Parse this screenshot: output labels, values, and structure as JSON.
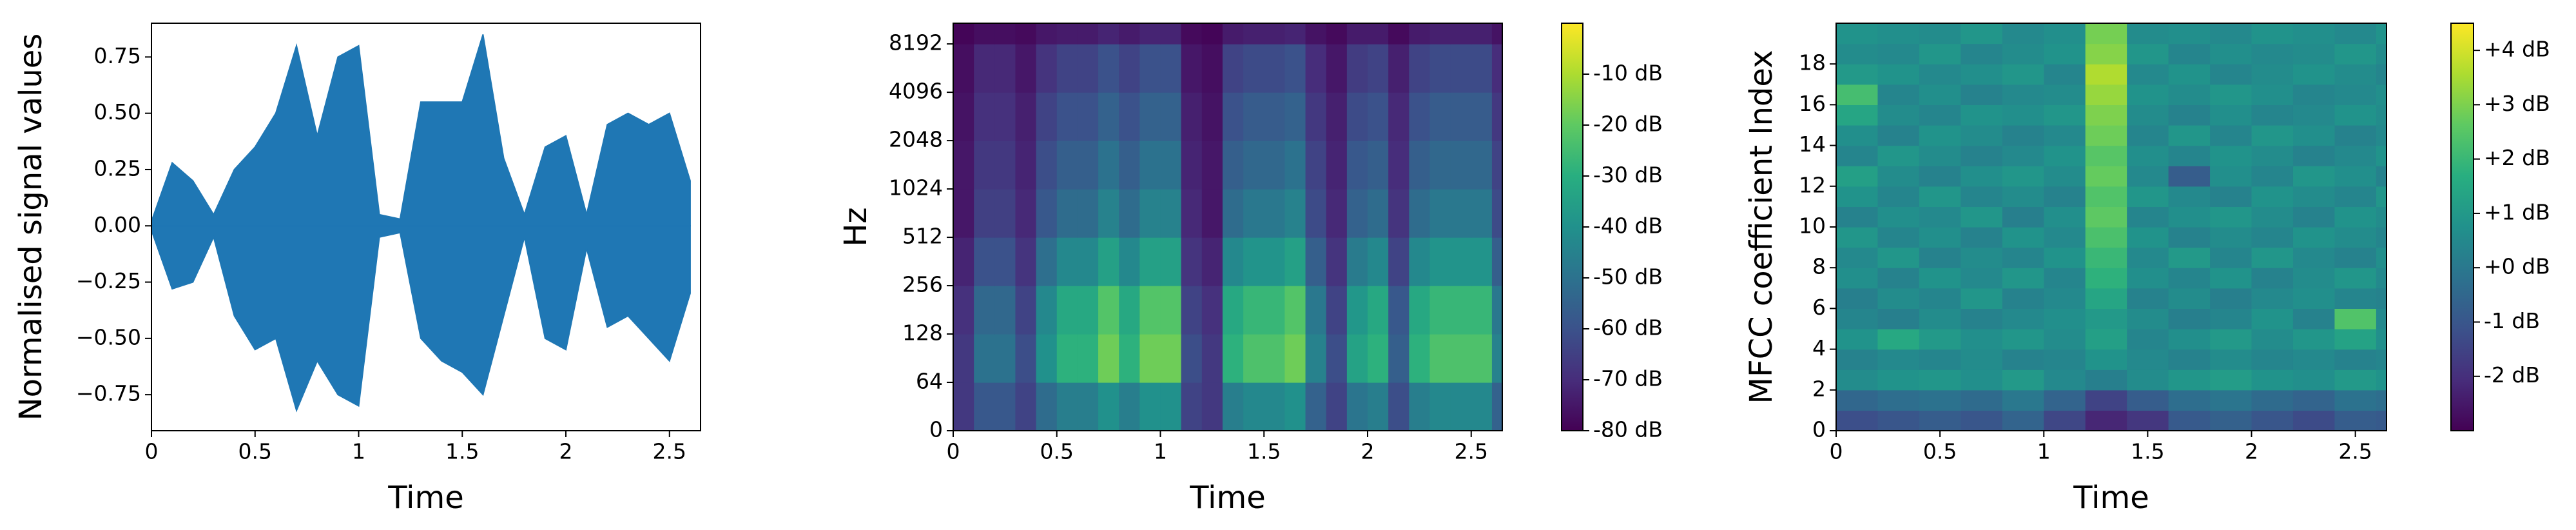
{
  "chart_data": [
    {
      "type": "area",
      "xlabel": "Time",
      "ylabel": "Normalised signal values",
      "color": "#1f77b4",
      "x": [
        0,
        0.1,
        0.2,
        0.3,
        0.4,
        0.5,
        0.6,
        0.7,
        0.8,
        0.9,
        1,
        1.1,
        1.2,
        1.3,
        1.4,
        1.5,
        1.6,
        1.7,
        1.8,
        1.9,
        2,
        2.1,
        2.2,
        2.3,
        2.4,
        2.5,
        2.6
      ],
      "series": [
        {
          "values": [
            0.02,
            0.28,
            0.2,
            0.05,
            0.25,
            0.35,
            0.5,
            0.8,
            0.4,
            0.75,
            0.8,
            0.05,
            0.03,
            0.55,
            0.55,
            0.55,
            0.85,
            0.3,
            0.05,
            0.35,
            0.4,
            0.05,
            0.45,
            0.5,
            0.45,
            0.5,
            0.2
          ]
        },
        {
          "values": [
            -0.02,
            -0.28,
            -0.25,
            -0.05,
            -0.4,
            -0.55,
            -0.5,
            -0.82,
            -0.6,
            -0.75,
            -0.8,
            -0.05,
            -0.03,
            -0.5,
            -0.6,
            -0.65,
            -0.75,
            -0.4,
            -0.05,
            -0.5,
            -0.55,
            -0.1,
            -0.45,
            -0.4,
            -0.5,
            -0.6,
            -0.3
          ]
        }
      ],
      "xlim": [
        0,
        2.65
      ],
      "xticks": [
        0,
        0.5,
        1,
        1.5,
        2,
        2.5
      ],
      "ylim": [
        -0.91,
        0.9
      ],
      "yticks": [
        {
          "value": -0.75,
          "label": "−0.75"
        },
        {
          "value": -0.5,
          "label": "−0.50"
        },
        {
          "value": -0.25,
          "label": "−0.25"
        },
        {
          "value": 0,
          "label": "0.00"
        },
        0.25,
        {
          "value": 0.5,
          "label": "0.50"
        },
        0.75
      ]
    },
    {
      "type": "heatmap",
      "xlabel": "Time",
      "ylabel": "Hz",
      "colormap": "viridis",
      "yscale": "symlog",
      "linthresh": 64,
      "base": 2,
      "xbins": [
        0,
        0.1,
        0.2,
        0.3,
        0.4,
        0.5,
        0.6,
        0.7,
        0.8,
        0.9,
        1,
        1.1,
        1.2,
        1.3,
        1.4,
        1.5,
        1.6,
        1.7,
        1.8,
        1.9,
        2,
        2.1,
        2.2,
        2.3,
        2.4,
        2.5,
        2.6,
        2.65
      ],
      "ybins": [
        0,
        64,
        128,
        256,
        512,
        1024,
        2048,
        4096,
        8192,
        11025
      ],
      "z": [
        [
          -67,
          -58,
          -58,
          -64,
          -52,
          -46,
          -46,
          -40,
          -46,
          -40,
          -40,
          -64,
          -67,
          -46,
          -43,
          -43,
          -40,
          -55,
          -64,
          -49,
          -46,
          -61,
          -46,
          -43,
          -43,
          -43,
          -55
        ],
        [
          -67,
          -50,
          -50,
          -61,
          -40,
          -29,
          -29,
          -18,
          -29,
          -18,
          -18,
          -61,
          -67,
          -29,
          -23,
          -23,
          -18,
          -45,
          -61,
          -34,
          -29,
          -56,
          -29,
          -23,
          -23,
          -23,
          -45
        ],
        [
          -69,
          -53,
          -53,
          -64,
          -43,
          -32,
          -32,
          -22,
          -32,
          -22,
          -22,
          -64,
          -69,
          -32,
          -27,
          -27,
          -22,
          -48,
          -64,
          -38,
          -32,
          -58,
          -32,
          -27,
          -27,
          -27,
          -48
        ],
        [
          -72,
          -60,
          -60,
          -68,
          -51,
          -43,
          -43,
          -35,
          -43,
          -35,
          -35,
          -68,
          -72,
          -43,
          -39,
          -39,
          -35,
          -56,
          -68,
          -47,
          -43,
          -64,
          -43,
          -39,
          -39,
          -39,
          -56
        ],
        [
          -75,
          -65,
          -65,
          -71,
          -58,
          -52,
          -52,
          -45,
          -52,
          -45,
          -45,
          -71,
          -75,
          -52,
          -48,
          -48,
          -45,
          -62,
          -71,
          -55,
          -52,
          -68,
          -52,
          -48,
          -48,
          -48,
          -62
        ],
        [
          -75,
          -67,
          -67,
          -72,
          -61,
          -56,
          -56,
          -50,
          -56,
          -50,
          -50,
          -72,
          -75,
          -56,
          -53,
          -53,
          -50,
          -64,
          -72,
          -58,
          -56,
          -70,
          -56,
          -53,
          -53,
          -53,
          -64
        ],
        [
          -76,
          -69,
          -69,
          -73,
          -64,
          -60,
          -60,
          -55,
          -60,
          -55,
          -55,
          -73,
          -76,
          -60,
          -57,
          -57,
          -55,
          -67,
          -73,
          -62,
          -60,
          -71,
          -60,
          -57,
          -57,
          -57,
          -67
        ],
        [
          -77,
          -71,
          -71,
          -75,
          -68,
          -64,
          -64,
          -60,
          -64,
          -60,
          -60,
          -75,
          -77,
          -64,
          -62,
          -62,
          -60,
          -70,
          -75,
          -66,
          -64,
          -73,
          -64,
          -62,
          -62,
          -62,
          -70
        ],
        [
          -79,
          -77,
          -77,
          -78,
          -75,
          -74,
          -74,
          -72,
          -74,
          -72,
          -72,
          -78,
          -79,
          -74,
          -73,
          -73,
          -72,
          -76,
          -78,
          -74,
          -74,
          -78,
          -74,
          -73,
          -73,
          -73,
          -76
        ]
      ],
      "xlim": [
        0,
        2.65
      ],
      "xticks": [
        0,
        0.5,
        1,
        1.5,
        2,
        2.5
      ],
      "ylim": [
        0,
        11025
      ],
      "yticks": [
        0,
        64,
        128,
        256,
        512,
        1024,
        2048,
        4096,
        8192
      ],
      "clim": [
        -80,
        0
      ],
      "cticks": [
        {
          "value": -80,
          "label": "-80 dB"
        },
        {
          "value": -70,
          "label": "-70 dB"
        },
        {
          "value": -60,
          "label": "-60 dB"
        },
        {
          "value": -50,
          "label": "-50 dB"
        },
        {
          "value": -40,
          "label": "-40 dB"
        },
        {
          "value": -30,
          "label": "-30 dB"
        },
        {
          "value": -20,
          "label": "-20 dB"
        },
        {
          "value": -10,
          "label": "-10 dB"
        }
      ]
    },
    {
      "type": "heatmap",
      "xlabel": "Time",
      "ylabel": "MFCC coefficient Index",
      "colormap": "viridis",
      "xbins": [
        0,
        0.2,
        0.4,
        0.6,
        0.8,
        1,
        1.2,
        1.4,
        1.6,
        1.8,
        2,
        2.2,
        2.4,
        2.6,
        2.65
      ],
      "ybins": [
        0,
        1,
        2,
        3,
        4,
        5,
        6,
        7,
        8,
        9,
        10,
        11,
        12,
        13,
        14,
        15,
        16,
        17,
        18,
        19,
        20
      ],
      "z": [
        [
          -1.2,
          -1.0,
          -0.8,
          -1.0,
          -0.6,
          -1.4,
          -2.2,
          -1.8,
          -0.9,
          -0.7,
          -1.0,
          -1.3,
          -0.8,
          -0.9
        ],
        [
          -0.5,
          -0.3,
          -0.2,
          -0.4,
          0.0,
          -0.6,
          -1.5,
          -0.8,
          -0.3,
          -0.1,
          -0.4,
          -0.6,
          -0.2,
          -0.3
        ],
        [
          0.6,
          0.8,
          0.9,
          0.7,
          1.0,
          0.5,
          0.2,
          0.6,
          0.9,
          1.1,
          0.8,
          0.7,
          1.0,
          0.8
        ],
        [
          0.3,
          0.5,
          0.4,
          0.6,
          0.3,
          0.4,
          0.8,
          0.5,
          0.3,
          0.6,
          0.4,
          0.5,
          0.3,
          0.4
        ],
        [
          0.8,
          1.5,
          1.0,
          0.7,
          0.9,
          0.6,
          1.2,
          0.4,
          0.7,
          1.0,
          0.6,
          0.9,
          1.3,
          0.7
        ],
        [
          0.4,
          0.2,
          0.6,
          0.3,
          0.5,
          0.7,
          1.0,
          0.6,
          0.2,
          0.4,
          0.8,
          0.3,
          2.4,
          0.5
        ],
        [
          0.2,
          0.6,
          0.4,
          0.9,
          0.3,
          0.5,
          1.4,
          0.3,
          0.6,
          0.2,
          0.5,
          0.7,
          0.4,
          0.3
        ],
        [
          0.7,
          0.3,
          0.8,
          0.5,
          0.9,
          0.4,
          1.8,
          0.7,
          0.4,
          0.8,
          0.3,
          0.6,
          0.9,
          0.5
        ],
        [
          0.5,
          0.9,
          0.3,
          0.6,
          0.4,
          0.8,
          2.0,
          0.5,
          1.0,
          0.4,
          0.9,
          0.5,
          0.3,
          0.7
        ],
        [
          0.9,
          0.4,
          0.7,
          0.3,
          0.8,
          0.5,
          2.3,
          0.8,
          0.3,
          0.6,
          0.4,
          0.8,
          0.6,
          0.4
        ],
        [
          0.3,
          0.7,
          0.5,
          0.9,
          0.2,
          0.7,
          2.6,
          0.4,
          0.7,
          0.9,
          0.6,
          0.3,
          0.8,
          0.6
        ],
        [
          0.8,
          0.4,
          0.9,
          0.4,
          0.6,
          0.3,
          2.4,
          0.9,
          0.5,
          0.3,
          0.8,
          0.6,
          0.4,
          0.9
        ],
        [
          1.2,
          0.6,
          0.3,
          0.7,
          0.9,
          0.6,
          2.7,
          0.5,
          -0.8,
          0.7,
          0.4,
          0.9,
          0.7,
          0.3
        ],
        [
          0.4,
          0.9,
          0.6,
          0.3,
          0.5,
          0.8,
          2.5,
          0.7,
          0.4,
          0.8,
          0.6,
          0.3,
          0.5,
          0.8
        ],
        [
          0.7,
          0.3,
          0.8,
          0.6,
          0.3,
          0.5,
          2.8,
          0.4,
          0.9,
          0.4,
          0.9,
          0.7,
          0.3,
          0.5
        ],
        [
          1.4,
          0.6,
          0.4,
          0.8,
          0.7,
          0.9,
          3.0,
          0.6,
          0.3,
          0.7,
          0.4,
          0.5,
          0.8,
          0.6
        ],
        [
          2.2,
          0.4,
          0.7,
          0.3,
          0.5,
          0.6,
          3.3,
          0.8,
          0.6,
          0.9,
          0.7,
          0.4,
          0.5,
          0.7
        ],
        [
          1.0,
          0.8,
          0.5,
          0.7,
          0.9,
          0.4,
          3.6,
          0.5,
          0.8,
          0.4,
          0.6,
          0.8,
          0.6,
          0.4
        ],
        [
          0.6,
          0.5,
          0.9,
          0.4,
          0.6,
          0.8,
          3.1,
          0.9,
          0.4,
          0.7,
          0.5,
          0.6,
          0.9,
          0.6
        ],
        [
          0.8,
          0.7,
          0.6,
          0.9,
          0.5,
          0.7,
          2.9,
          0.6,
          0.7,
          0.5,
          0.8,
          0.7,
          0.5,
          0.8
        ]
      ],
      "xlim": [
        0,
        2.65
      ],
      "xticks": [
        0,
        0.5,
        1,
        1.5,
        2,
        2.5
      ],
      "ylim": [
        0,
        20
      ],
      "yticks": [
        0,
        2,
        4,
        6,
        8,
        10,
        12,
        14,
        16,
        18
      ],
      "clim": [
        -3,
        4.5
      ],
      "cticks": [
        {
          "value": -2,
          "label": "-2 dB"
        },
        {
          "value": -1,
          "label": "-1 dB"
        },
        {
          "value": 0,
          "label": "+0 dB"
        },
        {
          "value": 1,
          "label": "+1 dB"
        },
        {
          "value": 2,
          "label": "+2 dB"
        },
        {
          "value": 3,
          "label": "+3 dB"
        },
        {
          "value": 4,
          "label": "+4 dB"
        }
      ]
    }
  ]
}
